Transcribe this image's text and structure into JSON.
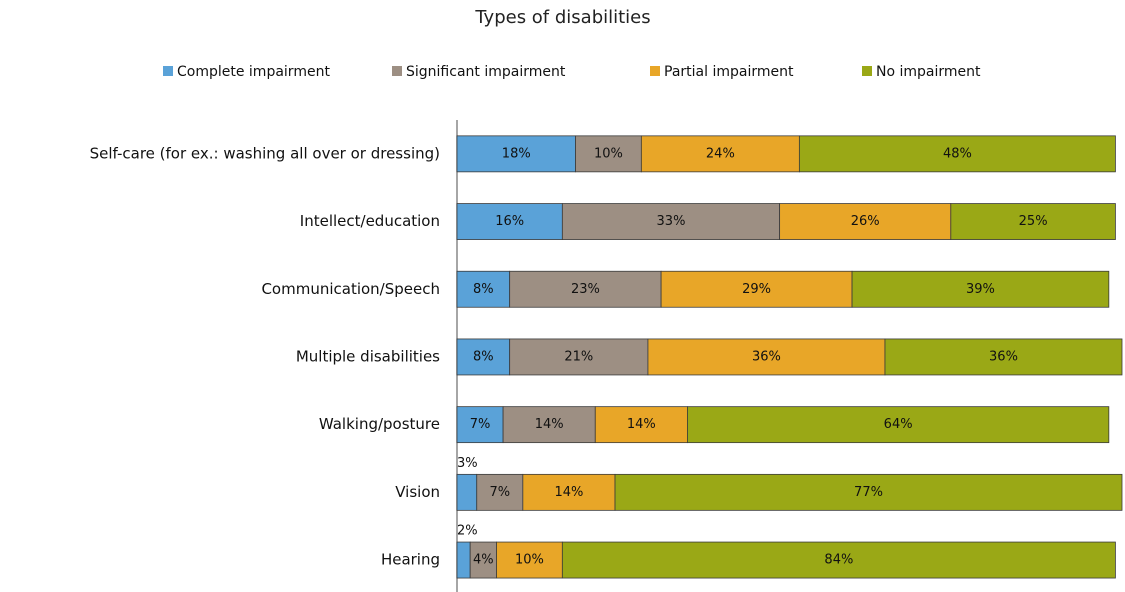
{
  "chart_data": {
    "type": "stacked-barh",
    "title": "Types of disabilities",
    "categories": [
      "Self-care (for ex.: washing all over or dressing)",
      "Intellect/education",
      "Communication/Speech",
      "Multiple disabilities",
      "Walking/posture",
      "Vision",
      "Hearing"
    ],
    "series": [
      {
        "name": "Complete impairment",
        "color": "#5aa2d8",
        "values": [
          18,
          16,
          8,
          8,
          7,
          3,
          2
        ],
        "value_labels": [
          "18%",
          "16%",
          "8%",
          "8%",
          "7%",
          "3%",
          "2%"
        ]
      },
      {
        "name": "Significant  impairment",
        "color": "#9d8f83",
        "values": [
          10,
          33,
          23,
          21,
          14,
          7,
          4
        ],
        "value_labels": [
          "10%",
          "33%",
          "23%",
          "21%",
          "14%",
          "7%",
          "4%"
        ]
      },
      {
        "name": "Partial impairment",
        "color": "#e8a628",
        "values": [
          24,
          26,
          29,
          36,
          14,
          14,
          10
        ],
        "value_labels": [
          "24%",
          "26%",
          "29%",
          "36%",
          "14%",
          "14%",
          "10%"
        ]
      },
      {
        "name": "No impairment",
        "color": "#9aa816",
        "values": [
          48,
          25,
          39,
          36,
          64,
          77,
          84
        ],
        "value_labels": [
          "48%",
          "25%",
          "39%",
          "36%",
          "64%",
          "77%",
          "84%"
        ]
      }
    ],
    "legend": "top"
  }
}
